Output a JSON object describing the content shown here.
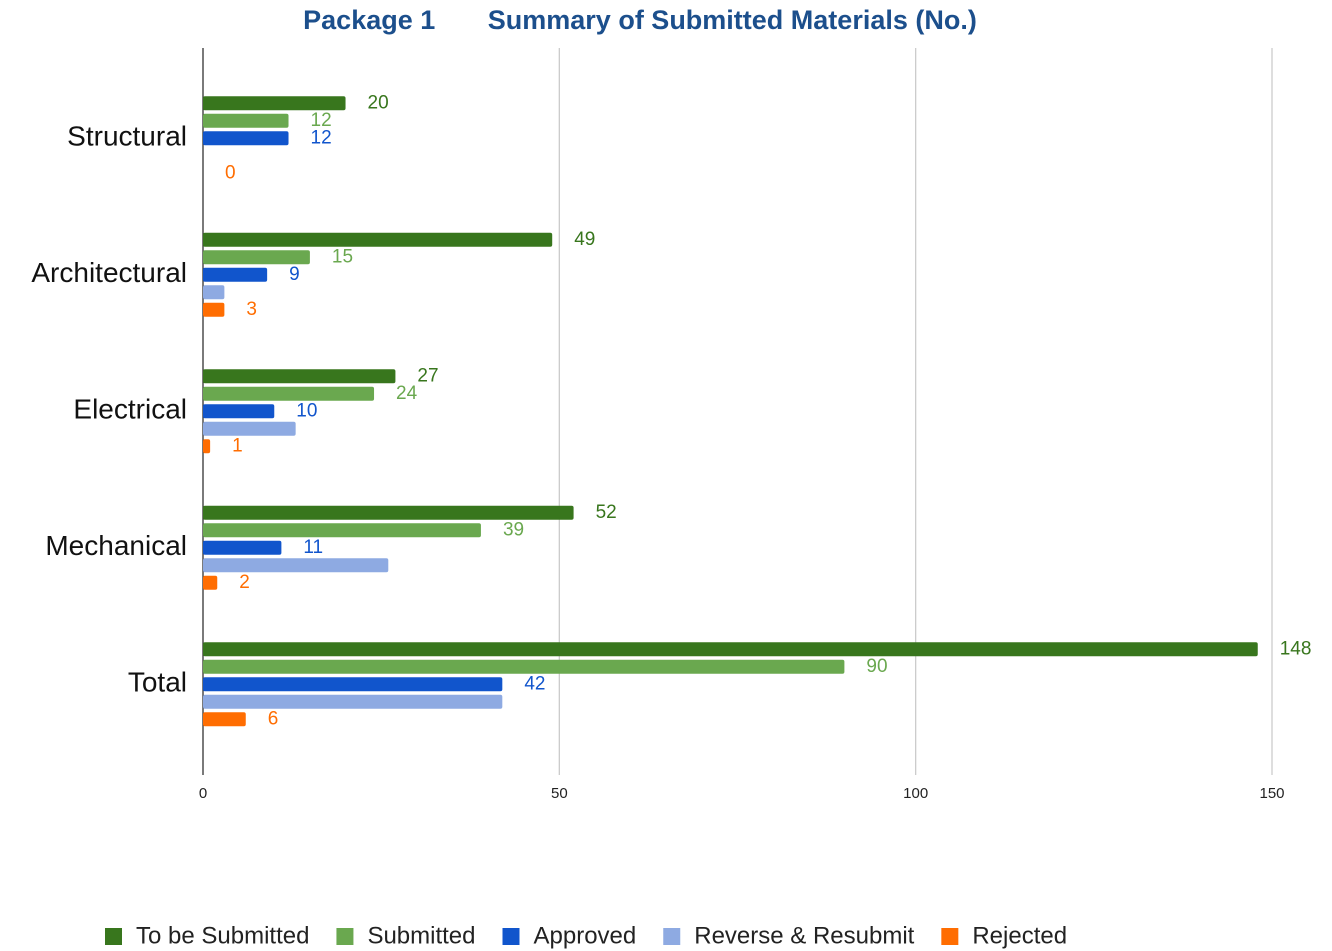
{
  "chart_data": {
    "type": "bar",
    "orientation": "horizontal",
    "title": "Package 1       Summary of Submitted Materials (No.)",
    "categories": [
      "Structural",
      "Architectural",
      "Electrical",
      "Mechanical",
      "Total"
    ],
    "series": [
      {
        "name": "To be Submitted",
        "color": "#38761d",
        "values": [
          20,
          49,
          27,
          52,
          148
        ]
      },
      {
        "name": "Submitted",
        "color": "#6aa84f",
        "values": [
          12,
          15,
          24,
          39,
          90
        ]
      },
      {
        "name": "Approved",
        "color": "#1155cc",
        "values": [
          12,
          9,
          10,
          11,
          42
        ]
      },
      {
        "name": "Reverse & Resubmit",
        "color": "#8eaae2",
        "values": [
          0,
          3,
          13,
          26,
          42
        ],
        "labels": false
      },
      {
        "name": "Rejected",
        "color": "#ff6d01",
        "values": [
          0,
          3,
          1,
          2,
          6
        ]
      }
    ],
    "xlim": [
      0,
      150
    ],
    "xticks": [
      0,
      50,
      100,
      150
    ],
    "grid": true,
    "legend": "bottom"
  }
}
